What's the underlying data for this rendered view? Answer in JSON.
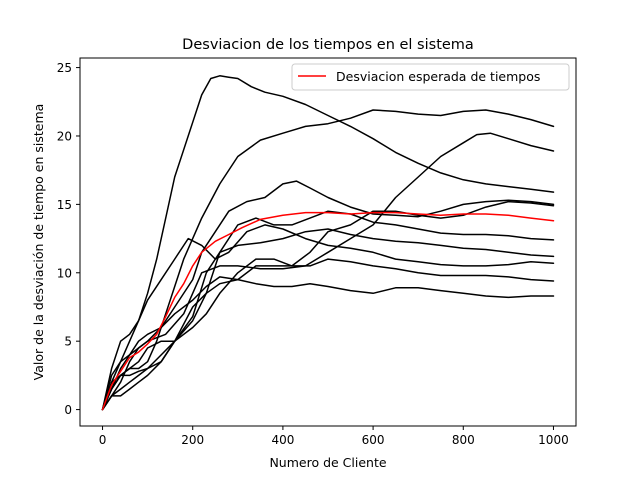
{
  "chart_data": {
    "type": "line",
    "title": "Desviacion de los tiempos en el sistema",
    "xlabel": "Numero de Cliente",
    "ylabel": "Valor de la desviación de tiempo en sistema",
    "xlim": [
      -50,
      1050
    ],
    "ylim": [
      -1.2,
      25.7
    ],
    "xticks": [
      0,
      200,
      400,
      600,
      800,
      1000
    ],
    "yticks": [
      0,
      5,
      10,
      15,
      20,
      25
    ],
    "x_tick_labels": [
      "0",
      "200",
      "400",
      "600",
      "800",
      "1000"
    ],
    "y_tick_labels": [
      "0",
      "5",
      "10",
      "15",
      "20",
      "25"
    ],
    "grid": false,
    "legend_position": "top-right",
    "colors": {
      "simulation": "#000000",
      "expected": "#ff0000"
    },
    "legend_entries": [
      "Desviacion esperada de tiempos"
    ],
    "series": [
      {
        "kind": "simulation",
        "x": [
          0,
          20,
          40,
          60,
          80,
          100,
          120,
          140,
          160,
          180,
          200,
          220,
          240,
          260,
          280,
          300,
          330,
          360,
          400,
          450,
          500,
          550,
          600,
          650,
          700,
          750,
          800,
          850,
          900,
          950,
          1000
        ],
        "values": [
          0,
          2.5,
          3.5,
          5,
          6.5,
          8.5,
          11,
          14,
          17,
          19,
          21,
          23,
          24.2,
          24.4,
          24.3,
          24.2,
          23.6,
          23.2,
          22.9,
          22.3,
          21.5,
          20.7,
          19.8,
          18.8,
          18,
          17.3,
          16.8,
          16.5,
          16.3,
          16.1,
          15.9
        ]
      },
      {
        "kind": "simulation",
        "x": [
          0,
          20,
          40,
          60,
          80,
          100,
          120,
          140,
          160,
          180,
          200,
          220,
          260,
          300,
          350,
          400,
          450,
          500,
          550,
          600,
          650,
          700,
          750,
          800,
          850,
          900,
          950,
          1000
        ],
        "values": [
          0,
          1.5,
          2.5,
          3,
          3,
          3.5,
          5,
          7,
          9,
          11,
          12.5,
          14,
          16.5,
          18.5,
          19.7,
          20.2,
          20.7,
          20.9,
          21.3,
          21.9,
          21.8,
          21.6,
          21.5,
          21.8,
          21.9,
          21.6,
          21.2,
          20.7
        ]
      },
      {
        "kind": "simulation",
        "x": [
          0,
          20,
          40,
          60,
          80,
          100,
          140,
          180,
          220,
          260,
          300,
          350,
          400,
          450,
          500,
          550,
          600,
          650,
          700,
          750,
          800,
          830,
          860,
          900,
          950,
          1000
        ],
        "values": [
          0,
          1,
          2,
          3.5,
          4.5,
          5,
          5.5,
          7,
          10,
          10.5,
          10.5,
          10.3,
          10.3,
          10.5,
          11.5,
          12.5,
          13.5,
          15.5,
          17,
          18.5,
          19.5,
          20.1,
          20.2,
          19.8,
          19.3,
          18.9
        ]
      },
      {
        "kind": "simulation",
        "x": [
          0,
          20,
          40,
          60,
          80,
          100,
          130,
          160,
          200,
          220,
          250,
          280,
          320,
          360,
          400,
          430,
          460,
          500,
          550,
          600,
          650,
          700,
          750,
          800,
          850,
          900,
          950,
          1000
        ],
        "values": [
          0,
          2,
          3.5,
          4,
          4.5,
          5,
          6,
          7.5,
          9.5,
          11.5,
          13,
          14.5,
          15.2,
          15.5,
          16.5,
          16.7,
          16.2,
          15.5,
          14.8,
          14.3,
          14.2,
          14.1,
          14.5,
          15,
          15.2,
          15.3,
          15.2,
          15
        ]
      },
      {
        "kind": "simulation",
        "x": [
          0,
          20,
          40,
          60,
          80,
          100,
          130,
          160,
          190,
          220,
          250,
          280,
          320,
          360,
          400,
          450,
          500,
          550,
          600,
          650,
          700,
          750,
          800,
          850,
          900,
          950,
          1000
        ],
        "values": [
          0,
          3,
          5,
          5.5,
          6.5,
          8,
          9.5,
          11,
          12.5,
          12,
          11,
          11.5,
          13,
          13.5,
          13.2,
          12.5,
          12,
          11.8,
          11.5,
          11,
          10.8,
          10.6,
          10.5,
          10.5,
          10.6,
          10.8,
          10.7
        ]
      },
      {
        "kind": "simulation",
        "x": [
          0,
          20,
          40,
          60,
          80,
          100,
          130,
          160,
          200,
          230,
          260,
          300,
          340,
          380,
          420,
          460,
          500,
          550,
          600,
          650,
          700,
          750,
          800,
          850,
          900,
          950,
          1000
        ],
        "values": [
          0,
          1,
          1,
          1.5,
          2,
          2.5,
          3.5,
          5,
          7.5,
          8.5,
          9.2,
          9.5,
          9.2,
          9,
          9,
          9.2,
          9,
          8.7,
          8.5,
          8.9,
          8.9,
          8.7,
          8.5,
          8.3,
          8.2,
          8.3,
          8.3
        ]
      },
      {
        "kind": "simulation",
        "x": [
          0,
          20,
          40,
          60,
          80,
          100,
          130,
          160,
          200,
          230,
          260,
          300,
          340,
          380,
          420,
          460,
          500,
          550,
          600,
          650,
          700,
          750,
          800,
          850,
          900,
          950,
          1000
        ],
        "values": [
          0,
          1.5,
          2.5,
          3,
          3.5,
          4.5,
          5,
          5,
          6,
          7,
          8.5,
          10,
          11,
          11,
          10.5,
          10.5,
          11,
          10.8,
          10.5,
          10.3,
          10,
          9.8,
          9.8,
          9.8,
          9.7,
          9.5,
          9.4
        ]
      },
      {
        "kind": "simulation",
        "x": [
          0,
          20,
          40,
          60,
          80,
          100,
          130,
          160,
          200,
          230,
          260,
          300,
          350,
          400,
          450,
          500,
          550,
          600,
          650,
          700,
          750,
          800,
          850,
          900,
          950,
          1000
        ],
        "values": [
          0,
          2,
          2.5,
          2.5,
          2.8,
          3,
          3.5,
          5,
          6.8,
          10,
          11.5,
          12,
          12.2,
          12.5,
          13,
          13.2,
          12.8,
          12.5,
          12.3,
          12.2,
          12,
          11.8,
          11.7,
          11.5,
          11.3,
          11.2
        ]
      },
      {
        "kind": "simulation",
        "x": [
          0,
          20,
          40,
          60,
          80,
          100,
          130,
          160,
          200,
          230,
          260,
          300,
          340,
          380,
          420,
          460,
          500,
          550,
          600,
          650,
          700,
          750,
          800,
          850,
          900,
          950,
          1000
        ],
        "values": [
          0,
          1.5,
          3,
          4,
          5,
          5.5,
          6,
          7,
          8,
          9,
          9.7,
          9.5,
          10.5,
          10.5,
          10.5,
          11.5,
          13,
          13.5,
          14.5,
          14.5,
          14.2,
          14,
          14.2,
          14.8,
          15.2,
          15.1,
          14.9
        ]
      },
      {
        "kind": "simulation",
        "x": [
          0,
          20,
          40,
          60,
          80,
          100,
          130,
          160,
          200,
          230,
          260,
          300,
          340,
          380,
          420,
          460,
          500,
          550,
          600,
          650,
          700,
          750,
          800,
          850,
          900,
          950,
          1000
        ],
        "values": [
          0,
          1,
          1.5,
          2,
          2.5,
          3,
          4,
          5,
          6.5,
          8.5,
          11.5,
          13.5,
          14,
          13.5,
          13.5,
          14,
          14.5,
          14.3,
          13.7,
          13.5,
          13.2,
          12.9,
          12.8,
          12.8,
          12.7,
          12.5,
          12.4
        ]
      },
      {
        "kind": "expected",
        "name": "Desviacion esperada de tiempos",
        "x": [
          0,
          20,
          40,
          60,
          80,
          100,
          120,
          140,
          160,
          180,
          200,
          220,
          250,
          280,
          310,
          350,
          400,
          450,
          500,
          550,
          600,
          650,
          700,
          750,
          800,
          850,
          900,
          950,
          1000
        ],
        "values": [
          0,
          1.8,
          2.8,
          3.8,
          4.2,
          4.8,
          5.5,
          6.8,
          8.2,
          9.2,
          10.5,
          11.5,
          12.3,
          12.8,
          13.3,
          13.9,
          14.2,
          14.4,
          14.4,
          14.3,
          14.4,
          14.4,
          14.3,
          14.2,
          14.3,
          14.3,
          14.2,
          14,
          13.8
        ]
      }
    ]
  }
}
